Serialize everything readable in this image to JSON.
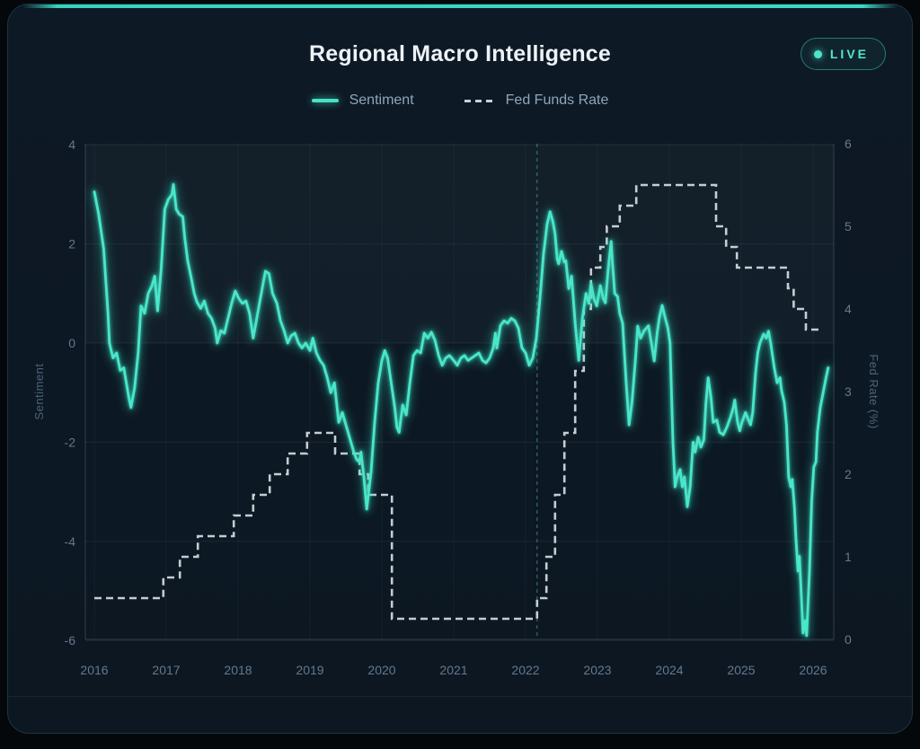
{
  "header": {
    "title": "Regional Macro Intelligence",
    "live_label": "LIVE"
  },
  "legend": [
    {
      "label": "Sentiment",
      "swatch": "solid-line",
      "color": "#46e3c6"
    },
    {
      "label": "Fed Funds Rate",
      "swatch": "dashed-line",
      "color": "#c9d1d8"
    }
  ],
  "colors": {
    "background": "#05080b",
    "card": "#0d1925",
    "accent": "#35d3bd",
    "sentiment_line": "#46e3c6",
    "fed_line": "#d6dce2",
    "tick_text": "#64798e"
  },
  "chart_data": {
    "type": "line",
    "title": "Regional Macro Intelligence",
    "x_axis": {
      "ticks": [
        2016,
        2017,
        2018,
        2019,
        2020,
        2021,
        2022,
        2023,
        2024,
        2025,
        2026
      ],
      "range": [
        2015.87,
        2026.29
      ]
    },
    "left_axis": {
      "label": "Sentiment",
      "ticks": [
        4,
        2,
        0,
        -2,
        -4,
        -6
      ],
      "range": [
        -6,
        4
      ]
    },
    "right_axis": {
      "label": "Fed Rate (%)",
      "ticks": [
        6,
        5,
        4,
        3,
        2,
        1,
        0
      ],
      "range": [
        0,
        6
      ]
    },
    "reference_line": {
      "x": 2022.16,
      "style": "vertical-dashed"
    },
    "grid": true,
    "legend_position": "top",
    "series": [
      {
        "name": "Sentiment",
        "axis": "left",
        "style": "solid",
        "color": "#46e3c6",
        "points": [
          [
            2016.0,
            3.05
          ],
          [
            2016.06,
            2.6
          ],
          [
            2016.13,
            1.9
          ],
          [
            2016.19,
            0.6
          ],
          [
            2016.21,
            0.0
          ],
          [
            2016.26,
            -0.3
          ],
          [
            2016.31,
            -0.2
          ],
          [
            2016.36,
            -0.55
          ],
          [
            2016.41,
            -0.5
          ],
          [
            2016.48,
            -1.1
          ],
          [
            2016.51,
            -1.3
          ],
          [
            2016.56,
            -0.9
          ],
          [
            2016.61,
            -0.2
          ],
          [
            2016.65,
            0.75
          ],
          [
            2016.7,
            0.6
          ],
          [
            2016.75,
            1.0
          ],
          [
            2016.8,
            1.15
          ],
          [
            2016.84,
            1.35
          ],
          [
            2016.88,
            0.65
          ],
          [
            2016.93,
            1.5
          ],
          [
            2016.98,
            2.7
          ],
          [
            2017.03,
            2.9
          ],
          [
            2017.08,
            3.0
          ],
          [
            2017.1,
            3.2
          ],
          [
            2017.14,
            2.7
          ],
          [
            2017.18,
            2.6
          ],
          [
            2017.23,
            2.55
          ],
          [
            2017.26,
            2.1
          ],
          [
            2017.3,
            1.65
          ],
          [
            2017.35,
            1.3
          ],
          [
            2017.39,
            1.0
          ],
          [
            2017.43,
            0.82
          ],
          [
            2017.48,
            0.7
          ],
          [
            2017.53,
            0.85
          ],
          [
            2017.58,
            0.6
          ],
          [
            2017.63,
            0.5
          ],
          [
            2017.68,
            0.3
          ],
          [
            2017.71,
            0.0
          ],
          [
            2017.76,
            0.25
          ],
          [
            2017.81,
            0.2
          ],
          [
            2017.86,
            0.5
          ],
          [
            2017.91,
            0.8
          ],
          [
            2017.96,
            1.05
          ],
          [
            2018.01,
            0.9
          ],
          [
            2018.06,
            0.8
          ],
          [
            2018.11,
            0.85
          ],
          [
            2018.16,
            0.6
          ],
          [
            2018.21,
            0.1
          ],
          [
            2018.26,
            0.5
          ],
          [
            2018.31,
            0.9
          ],
          [
            2018.38,
            1.45
          ],
          [
            2018.43,
            1.4
          ],
          [
            2018.48,
            1.0
          ],
          [
            2018.54,
            0.8
          ],
          [
            2018.59,
            0.45
          ],
          [
            2018.64,
            0.25
          ],
          [
            2018.69,
            0.0
          ],
          [
            2018.74,
            0.15
          ],
          [
            2018.79,
            0.2
          ],
          [
            2018.84,
            0.0
          ],
          [
            2018.89,
            -0.1
          ],
          [
            2018.94,
            0.0
          ],
          [
            2019.0,
            -0.15
          ],
          [
            2019.04,
            0.1
          ],
          [
            2019.09,
            -0.2
          ],
          [
            2019.14,
            -0.35
          ],
          [
            2019.19,
            -0.45
          ],
          [
            2019.24,
            -0.7
          ],
          [
            2019.29,
            -1.0
          ],
          [
            2019.34,
            -0.8
          ],
          [
            2019.4,
            -1.6
          ],
          [
            2019.45,
            -1.4
          ],
          [
            2019.48,
            -1.55
          ],
          [
            2019.53,
            -1.8
          ],
          [
            2019.56,
            -1.95
          ],
          [
            2019.61,
            -2.2
          ],
          [
            2019.65,
            -2.35
          ],
          [
            2019.69,
            -2.4
          ],
          [
            2019.71,
            -2.2
          ],
          [
            2019.75,
            -2.7
          ],
          [
            2019.79,
            -3.35
          ],
          [
            2019.81,
            -3.1
          ],
          [
            2019.85,
            -2.6
          ],
          [
            2019.9,
            -1.6
          ],
          [
            2019.95,
            -0.8
          ],
          [
            2020.0,
            -0.35
          ],
          [
            2020.04,
            -0.15
          ],
          [
            2020.08,
            -0.3
          ],
          [
            2020.13,
            -0.8
          ],
          [
            2020.18,
            -1.3
          ],
          [
            2020.21,
            -1.7
          ],
          [
            2020.24,
            -1.8
          ],
          [
            2020.29,
            -1.25
          ],
          [
            2020.34,
            -1.45
          ],
          [
            2020.39,
            -0.8
          ],
          [
            2020.44,
            -0.25
          ],
          [
            2020.49,
            -0.15
          ],
          [
            2020.54,
            -0.2
          ],
          [
            2020.59,
            0.2
          ],
          [
            2020.64,
            0.1
          ],
          [
            2020.69,
            0.22
          ],
          [
            2020.74,
            0.05
          ],
          [
            2020.79,
            -0.25
          ],
          [
            2020.84,
            -0.45
          ],
          [
            2020.89,
            -0.3
          ],
          [
            2020.94,
            -0.25
          ],
          [
            2021.0,
            -0.35
          ],
          [
            2021.05,
            -0.45
          ],
          [
            2021.1,
            -0.3
          ],
          [
            2021.15,
            -0.25
          ],
          [
            2021.2,
            -0.35
          ],
          [
            2021.25,
            -0.3
          ],
          [
            2021.3,
            -0.25
          ],
          [
            2021.35,
            -0.2
          ],
          [
            2021.4,
            -0.35
          ],
          [
            2021.45,
            -0.4
          ],
          [
            2021.5,
            -0.3
          ],
          [
            2021.55,
            -0.1
          ],
          [
            2021.58,
            0.2
          ],
          [
            2021.6,
            -0.1
          ],
          [
            2021.65,
            0.35
          ],
          [
            2021.7,
            0.45
          ],
          [
            2021.75,
            0.4
          ],
          [
            2021.8,
            0.5
          ],
          [
            2021.85,
            0.45
          ],
          [
            2021.9,
            0.3
          ],
          [
            2021.95,
            -0.1
          ],
          [
            2022.0,
            -0.2
          ],
          [
            2022.05,
            -0.45
          ],
          [
            2022.1,
            -0.3
          ],
          [
            2022.15,
            0.1
          ],
          [
            2022.2,
            0.9
          ],
          [
            2022.25,
            1.8
          ],
          [
            2022.3,
            2.4
          ],
          [
            2022.34,
            2.65
          ],
          [
            2022.38,
            2.45
          ],
          [
            2022.41,
            2.2
          ],
          [
            2022.44,
            1.7
          ],
          [
            2022.46,
            1.6
          ],
          [
            2022.5,
            1.85
          ],
          [
            2022.54,
            1.63
          ],
          [
            2022.56,
            1.66
          ],
          [
            2022.6,
            1.1
          ],
          [
            2022.64,
            1.35
          ],
          [
            2022.69,
            0.4
          ],
          [
            2022.74,
            -0.35
          ],
          [
            2022.79,
            0.5
          ],
          [
            2022.84,
            1.0
          ],
          [
            2022.88,
            0.8
          ],
          [
            2022.91,
            1.2
          ],
          [
            2022.95,
            0.9
          ],
          [
            2022.99,
            0.75
          ],
          [
            2023.04,
            1.16
          ],
          [
            2023.08,
            0.9
          ],
          [
            2023.11,
            0.81
          ],
          [
            2023.15,
            1.5
          ],
          [
            2023.19,
            2.05
          ],
          [
            2023.21,
            1.6
          ],
          [
            2023.24,
            1.0
          ],
          [
            2023.28,
            0.94
          ],
          [
            2023.31,
            0.6
          ],
          [
            2023.35,
            0.4
          ],
          [
            2023.4,
            -0.8
          ],
          [
            2023.44,
            -1.65
          ],
          [
            2023.48,
            -1.2
          ],
          [
            2023.53,
            -0.3
          ],
          [
            2023.56,
            0.34
          ],
          [
            2023.6,
            0.1
          ],
          [
            2023.65,
            0.25
          ],
          [
            2023.71,
            0.35
          ],
          [
            2023.75,
            0.0
          ],
          [
            2023.79,
            -0.36
          ],
          [
            2023.83,
            0.2
          ],
          [
            2023.86,
            0.5
          ],
          [
            2023.9,
            0.76
          ],
          [
            2023.94,
            0.52
          ],
          [
            2023.98,
            0.3
          ],
          [
            2024.01,
            0.0
          ],
          [
            2024.05,
            -2.0
          ],
          [
            2024.08,
            -2.9
          ],
          [
            2024.11,
            -2.7
          ],
          [
            2024.15,
            -2.55
          ],
          [
            2024.18,
            -2.9
          ],
          [
            2024.21,
            -2.7
          ],
          [
            2024.25,
            -3.3
          ],
          [
            2024.29,
            -2.9
          ],
          [
            2024.33,
            -2.0
          ],
          [
            2024.36,
            -2.2
          ],
          [
            2024.4,
            -1.9
          ],
          [
            2024.44,
            -2.1
          ],
          [
            2024.48,
            -1.95
          ],
          [
            2024.51,
            -1.2
          ],
          [
            2024.54,
            -0.7
          ],
          [
            2024.58,
            -1.1
          ],
          [
            2024.61,
            -1.6
          ],
          [
            2024.66,
            -1.55
          ],
          [
            2024.7,
            -1.8
          ],
          [
            2024.75,
            -1.85
          ],
          [
            2024.8,
            -1.7
          ],
          [
            2024.85,
            -1.5
          ],
          [
            2024.89,
            -1.3
          ],
          [
            2024.91,
            -1.15
          ],
          [
            2024.95,
            -1.6
          ],
          [
            2024.98,
            -1.77
          ],
          [
            2025.01,
            -1.6
          ],
          [
            2025.06,
            -1.4
          ],
          [
            2025.1,
            -1.55
          ],
          [
            2025.13,
            -1.65
          ],
          [
            2025.16,
            -1.4
          ],
          [
            2025.2,
            -0.6
          ],
          [
            2025.23,
            -0.2
          ],
          [
            2025.26,
            0.0
          ],
          [
            2025.31,
            0.18
          ],
          [
            2025.35,
            0.1
          ],
          [
            2025.38,
            0.24
          ],
          [
            2025.41,
            0.0
          ],
          [
            2025.46,
            -0.5
          ],
          [
            2025.5,
            -0.8
          ],
          [
            2025.54,
            -0.7
          ],
          [
            2025.56,
            -0.95
          ],
          [
            2025.6,
            -1.2
          ],
          [
            2025.63,
            -1.65
          ],
          [
            2025.66,
            -2.7
          ],
          [
            2025.69,
            -2.9
          ],
          [
            2025.71,
            -2.75
          ],
          [
            2025.74,
            -3.3
          ],
          [
            2025.76,
            -3.9
          ],
          [
            2025.79,
            -4.6
          ],
          [
            2025.81,
            -4.3
          ],
          [
            2025.84,
            -5.2
          ],
          [
            2025.86,
            -5.85
          ],
          [
            2025.89,
            -5.6
          ],
          [
            2025.91,
            -5.9
          ],
          [
            2025.95,
            -4.6
          ],
          [
            2025.98,
            -3.2
          ],
          [
            2026.01,
            -2.5
          ],
          [
            2026.04,
            -2.4
          ],
          [
            2026.06,
            -1.8
          ],
          [
            2026.1,
            -1.3
          ],
          [
            2026.14,
            -1.0
          ],
          [
            2026.18,
            -0.7
          ],
          [
            2026.21,
            -0.5
          ]
        ]
      },
      {
        "name": "Fed Funds Rate",
        "axis": "right",
        "style": "dashed-step",
        "color": "#d6dce2",
        "end_t": 2026.12,
        "points": [
          [
            2016.0,
            0.5
          ],
          [
            2016.96,
            0.75
          ],
          [
            2017.19,
            1.0
          ],
          [
            2017.44,
            1.25
          ],
          [
            2017.94,
            1.5
          ],
          [
            2018.21,
            1.75
          ],
          [
            2018.44,
            2.0
          ],
          [
            2018.69,
            2.25
          ],
          [
            2018.96,
            2.5
          ],
          [
            2019.35,
            2.25
          ],
          [
            2019.69,
            2.0
          ],
          [
            2019.81,
            1.75
          ],
          [
            2020.14,
            0.25
          ],
          [
            2022.16,
            0.5
          ],
          [
            2022.29,
            1.0
          ],
          [
            2022.41,
            1.75
          ],
          [
            2022.54,
            2.5
          ],
          [
            2022.69,
            3.25
          ],
          [
            2022.81,
            4.0
          ],
          [
            2022.91,
            4.5
          ],
          [
            2023.04,
            4.75
          ],
          [
            2023.13,
            5.0
          ],
          [
            2023.31,
            5.25
          ],
          [
            2023.54,
            5.5
          ],
          [
            2024.65,
            5.0
          ],
          [
            2024.79,
            4.75
          ],
          [
            2024.94,
            4.5
          ],
          [
            2025.65,
            4.25
          ],
          [
            2025.73,
            4.0
          ],
          [
            2025.9,
            3.75
          ]
        ]
      }
    ]
  }
}
